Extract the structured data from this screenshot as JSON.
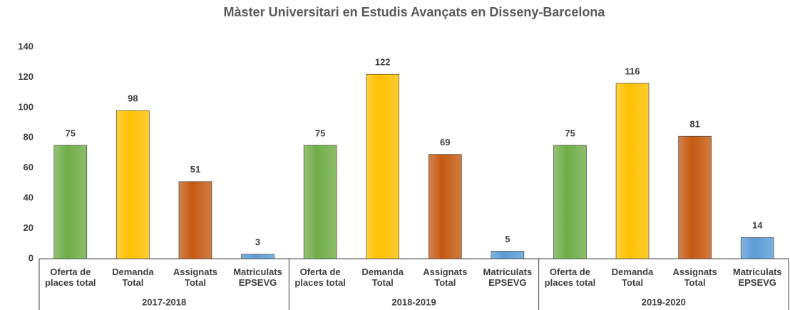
{
  "chart_data": {
    "type": "bar",
    "title": "Màster Universitari en Estudis Avançats en Disseny-Barcelona",
    "colors": [
      "#70ad47",
      "#ffc000",
      "#c55a11",
      "#5b9bd5"
    ],
    "groups": [
      {
        "label": "2017-2018",
        "categories": [
          "Oferta de places total",
          "Demanda Total",
          "Assignats Total",
          "Matriculats EPSEVG"
        ],
        "values": [
          75,
          98,
          51,
          3
        ]
      },
      {
        "label": "2018-2019",
        "categories": [
          "Oferta de places total",
          "Demanda Total",
          "Assignats Total",
          "Matriculats EPSEVG"
        ],
        "values": [
          75,
          122,
          69,
          5
        ]
      },
      {
        "label": "2019-2020",
        "categories": [
          "Oferta de places total",
          "Demanda Total",
          "Assignats Total",
          "Matriculats EPSEVG"
        ],
        "values": [
          75,
          116,
          81,
          14
        ]
      }
    ],
    "ylim": [
      0,
      140
    ],
    "yticks": [
      0,
      20,
      40,
      60,
      80,
      100,
      120,
      140
    ],
    "grid": false
  }
}
